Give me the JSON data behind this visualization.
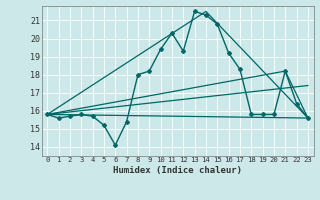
{
  "title": "",
  "xlabel": "Humidex (Indice chaleur)",
  "ylabel": "",
  "background_color": "#cce8e8",
  "grid_color": "#aacccc",
  "line_color": "#006666",
  "xlim": [
    -0.5,
    23.5
  ],
  "ylim": [
    13.5,
    21.8
  ],
  "xticks": [
    0,
    1,
    2,
    3,
    4,
    5,
    6,
    7,
    8,
    9,
    10,
    11,
    12,
    13,
    14,
    15,
    16,
    17,
    18,
    19,
    20,
    21,
    22,
    23
  ],
  "yticks": [
    14,
    15,
    16,
    17,
    18,
    19,
    20,
    21
  ],
  "lines": [
    {
      "x": [
        0,
        1,
        2,
        3,
        4,
        5,
        6,
        7,
        8,
        9,
        10,
        11,
        12,
        13,
        14,
        15,
        16,
        17,
        18,
        19,
        20,
        21,
        22,
        23
      ],
      "y": [
        15.8,
        15.6,
        15.7,
        15.8,
        15.7,
        15.2,
        14.1,
        15.4,
        18.0,
        18.2,
        19.4,
        20.3,
        19.3,
        21.5,
        21.3,
        20.8,
        19.2,
        18.3,
        15.8,
        15.8,
        15.8,
        18.2,
        16.4,
        15.6
      ],
      "marker": "D",
      "markersize": 2.0,
      "linewidth": 1.0
    },
    {
      "x": [
        0,
        23
      ],
      "y": [
        15.8,
        15.6
      ],
      "marker": null,
      "markersize": 0,
      "linewidth": 0.9
    },
    {
      "x": [
        0,
        14,
        23
      ],
      "y": [
        15.8,
        21.5,
        15.6
      ],
      "marker": null,
      "markersize": 0,
      "linewidth": 0.9
    },
    {
      "x": [
        0,
        21,
        23
      ],
      "y": [
        15.8,
        18.2,
        15.6
      ],
      "marker": null,
      "markersize": 0,
      "linewidth": 0.9
    },
    {
      "x": [
        0,
        23
      ],
      "y": [
        15.8,
        17.4
      ],
      "marker": null,
      "markersize": 0,
      "linewidth": 0.9
    }
  ]
}
